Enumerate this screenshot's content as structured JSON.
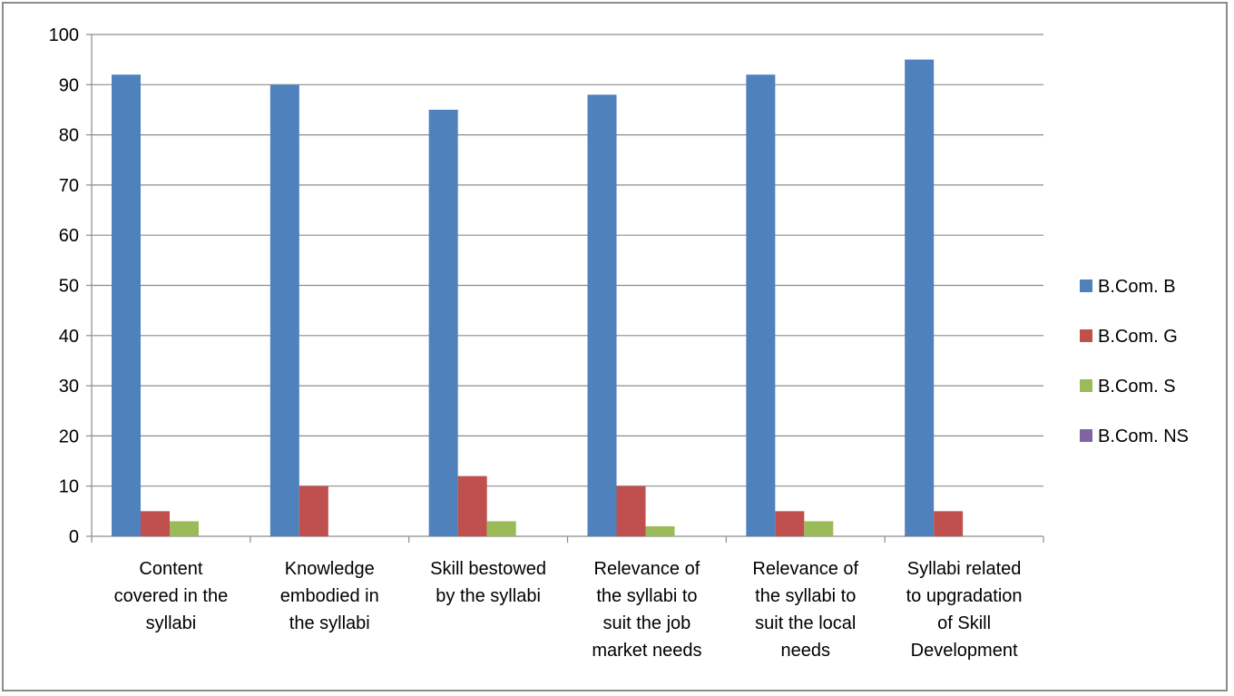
{
  "chart_data": {
    "type": "bar",
    "categories": [
      [
        "Content",
        "covered in the",
        "syllabi"
      ],
      [
        "Knowledge",
        "embodied in",
        "the syllabi"
      ],
      [
        "Skill bestowed",
        "by the syllabi"
      ],
      [
        "Relevance of",
        "the syllabi to",
        "suit the job",
        "market needs"
      ],
      [
        "Relevance of",
        "the syllabi to",
        "suit the local",
        "needs"
      ],
      [
        "Syllabi related",
        "to upgradation",
        "of Skill",
        "Development"
      ]
    ],
    "series": [
      {
        "name": "B.Com. B",
        "color": "#4f81bd",
        "values": [
          92,
          90,
          85,
          88,
          92,
          95
        ]
      },
      {
        "name": "B.Com. G",
        "color": "#c0504d",
        "values": [
          5,
          10,
          12,
          10,
          5,
          5
        ]
      },
      {
        "name": "B.Com. S",
        "color": "#9bbb59",
        "values": [
          3,
          0,
          3,
          2,
          3,
          0
        ]
      },
      {
        "name": "B.Com. NS",
        "color": "#8064a2",
        "values": [
          0,
          0,
          0,
          0,
          0,
          0
        ]
      }
    ],
    "yticks": [
      "0",
      "10",
      "20",
      "30",
      "40",
      "50",
      "60",
      "70",
      "80",
      "90",
      "100"
    ],
    "ylim": [
      0,
      100
    ],
    "grid": true,
    "legend": "right"
  }
}
